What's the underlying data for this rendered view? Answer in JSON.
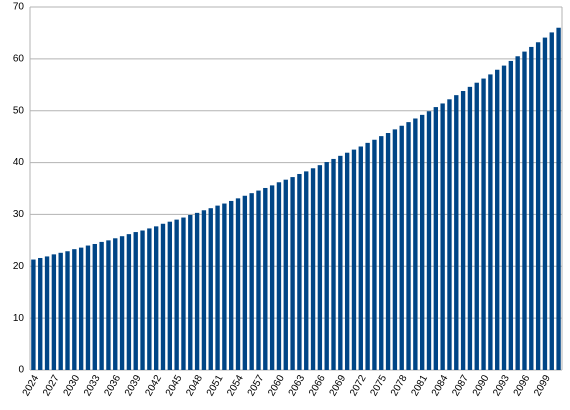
{
  "chart_data": {
    "type": "bar",
    "categories": [
      "2024",
      null,
      null,
      "2027",
      null,
      null,
      "2030",
      null,
      null,
      "2033",
      null,
      null,
      "2036",
      null,
      null,
      "2039",
      null,
      null,
      "2042",
      null,
      null,
      "2045",
      null,
      null,
      "2048",
      null,
      null,
      "2051",
      null,
      null,
      "2054",
      null,
      null,
      "2057",
      null,
      null,
      "2060",
      null,
      null,
      "2063",
      null,
      null,
      "2066",
      null,
      null,
      "2069",
      null,
      null,
      "2072",
      null,
      null,
      "2075",
      null,
      null,
      "2078",
      null,
      null,
      "2081",
      null,
      null,
      "2084",
      null,
      null,
      "2087",
      null,
      null,
      "2090",
      null,
      null,
      "2093",
      null,
      null,
      "2096",
      null,
      null,
      "2099",
      null,
      null
    ],
    "values": [
      21.3,
      21.6,
      21.9,
      22.3,
      22.6,
      22.9,
      23.3,
      23.6,
      24.0,
      24.3,
      24.7,
      25.0,
      25.4,
      25.8,
      26.2,
      26.6,
      26.9,
      27.3,
      27.7,
      28.2,
      28.6,
      29.0,
      29.4,
      29.9,
      30.3,
      30.8,
      31.2,
      31.7,
      32.1,
      32.6,
      33.1,
      33.6,
      34.1,
      34.6,
      35.1,
      35.6,
      36.2,
      36.7,
      37.2,
      37.8,
      38.3,
      38.9,
      39.5,
      40.1,
      40.7,
      41.3,
      41.9,
      42.5,
      43.1,
      43.8,
      44.4,
      45.1,
      45.7,
      46.4,
      47.1,
      47.8,
      48.5,
      49.2,
      49.9,
      50.7,
      51.4,
      52.2,
      53.0,
      53.8,
      54.6,
      55.4,
      56.2,
      57.0,
      57.9,
      58.7,
      59.6,
      60.5,
      61.4,
      62.3,
      63.2,
      64.1,
      65.1,
      66.0
    ],
    "color": "#004586",
    "ylim": [
      0,
      70
    ],
    "yticks": [
      0,
      10,
      20,
      30,
      40,
      50,
      60,
      70
    ],
    "grid": true
  }
}
